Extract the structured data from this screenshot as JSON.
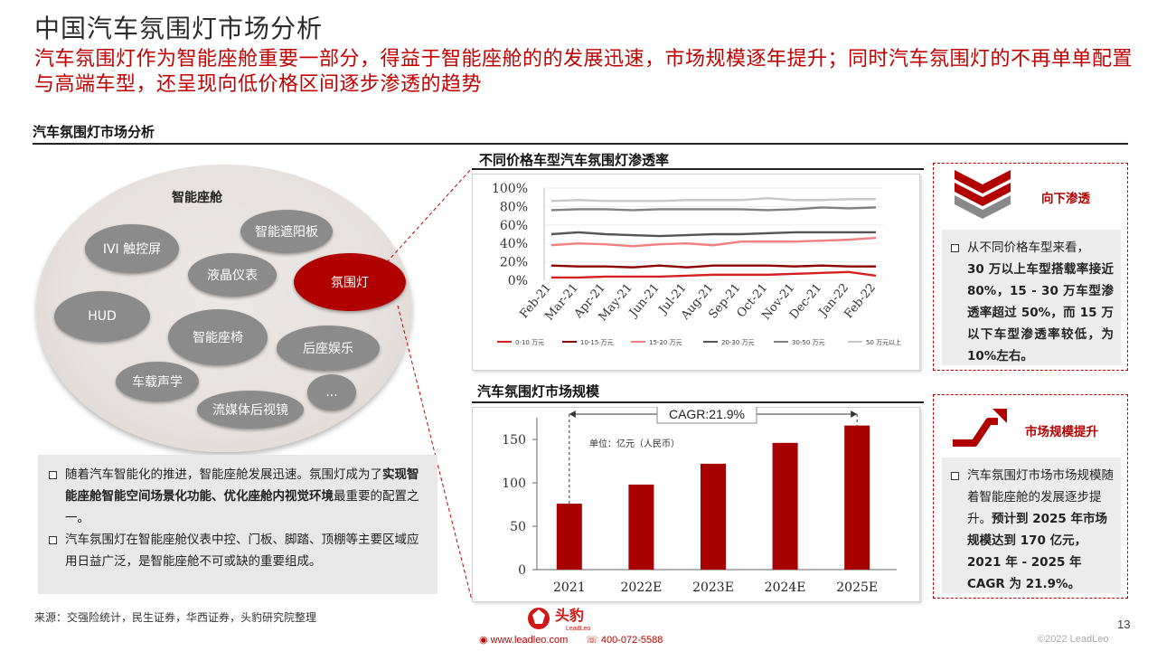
{
  "header": {
    "title": "中国汽车氛围灯市场分析",
    "subtitle": "汽车氛围灯作为智能座舱重要一部分，得益于智能座舱的的发展迅速，市场规模逐年提升；同时汽车氛围灯的不再单单配置与高端车型，还呈现向低价格区间逐步渗透的趋势"
  },
  "section": {
    "label": "汽车氛围灯市场分析"
  },
  "diagram": {
    "title": "智能座舱",
    "bubbles": [
      "IVI 触控屏",
      "智能遮阳板",
      "液晶仪表",
      "氛围灯",
      "HUD",
      "智能座椅",
      "后座娱乐",
      "车载声学",
      "流媒体后视镜",
      "..."
    ]
  },
  "left_box": {
    "p1_a": "随着汽车智能化的推进，智能座舱发展迅速。氛围灯成为了",
    "p1_b": "实现智能座舱智能空间场景化功能、优化座舱内视觉环境",
    "p1_c": "最重要的配置之一。",
    "p2": "汽车氛围灯在智能座舱仪表中控、门板、脚踏、顶棚等主要区域应用日益广泛，是智能座舱不可或缺的重要组成。"
  },
  "source": "来源：交强险统计，民生证券，华西证券，头豹研究院整理",
  "chart_data": [
    {
      "type": "line",
      "title": "不同价格车型汽车氛围灯渗透率",
      "x": [
        "Feb-21",
        "Mar-21",
        "Apr-21",
        "May-21",
        "Jun-21",
        "Jul-21",
        "Aug-21",
        "Sep-21",
        "Oct-21",
        "Nov-21",
        "Dec-21",
        "Jan-22",
        "Feb-22"
      ],
      "yticks": [
        "100%",
        "80%",
        "60%",
        "40%",
        "20%",
        "0%"
      ],
      "ylim": [
        0,
        100
      ],
      "series": [
        {
          "name": "0-10 万元",
          "color": "#d62020",
          "values": [
            3,
            3,
            4,
            4,
            4,
            5,
            6,
            6,
            6,
            7,
            8,
            9,
            5
          ]
        },
        {
          "name": "10-15 万元",
          "color": "#8b0000",
          "values": [
            16,
            15,
            15,
            14,
            16,
            14,
            16,
            16,
            16,
            15,
            16,
            15,
            15
          ]
        },
        {
          "name": "15-20 万元",
          "color": "#f08080",
          "values": [
            38,
            40,
            39,
            37,
            39,
            40,
            38,
            42,
            42,
            42,
            43,
            44,
            46
          ]
        },
        {
          "name": "20-30 万元",
          "color": "#555555",
          "values": [
            50,
            52,
            50,
            49,
            48,
            49,
            50,
            50,
            51,
            52,
            52,
            52,
            52
          ]
        },
        {
          "name": "30-50 万元",
          "color": "#808080",
          "values": [
            76,
            77,
            77,
            76,
            77,
            77,
            77,
            77,
            76,
            77,
            79,
            78,
            79
          ]
        },
        {
          "name": "50 万元以上",
          "color": "#c8c8c8",
          "values": [
            86,
            87,
            86,
            86,
            86,
            87,
            87,
            87,
            89,
            87,
            87,
            88,
            88
          ]
        }
      ]
    },
    {
      "type": "bar",
      "title": "汽车氛围灯市场规模",
      "categories": [
        "2021",
        "2022E",
        "2023E",
        "2024E",
        "2025E"
      ],
      "values": [
        76,
        98,
        122,
        146,
        166
      ],
      "yticks": [
        "150",
        "100",
        "50",
        "0"
      ],
      "ylim": [
        0,
        175
      ],
      "unit_label": "单位：亿元（人民币）",
      "annotation": "CAGR:21.9%",
      "color": "#a80000"
    }
  ],
  "panel_top": {
    "heading": "向下渗透",
    "text_a": "从不同价格车型来看，",
    "text_b": "30 万以上车型搭载率接近 80%，15 - 30 万车型渗透率超过 50%，而 15 万以下车型渗透率较低，为 10%左右。"
  },
  "panel_bottom": {
    "heading": "市场规模提升",
    "text_a": "汽车氛围灯市场市场规模随着智能座舱的发展逐步提升。",
    "text_b": "预计到 2025 年市场规模达到 170 亿元， 2021 年 - 2025 年 CAGR 为 21.9%。"
  },
  "footer": {
    "logo_text": "头豹",
    "logo_sub": "LeadLeo",
    "website": "www.leadleo.com",
    "phone": "400-072-5588",
    "page_number": "13",
    "copyright": "©2022 LeadLeo"
  },
  "colors": {
    "accent": "#c00000",
    "dark_red": "#a80000",
    "gray": "#8b8b8b"
  }
}
